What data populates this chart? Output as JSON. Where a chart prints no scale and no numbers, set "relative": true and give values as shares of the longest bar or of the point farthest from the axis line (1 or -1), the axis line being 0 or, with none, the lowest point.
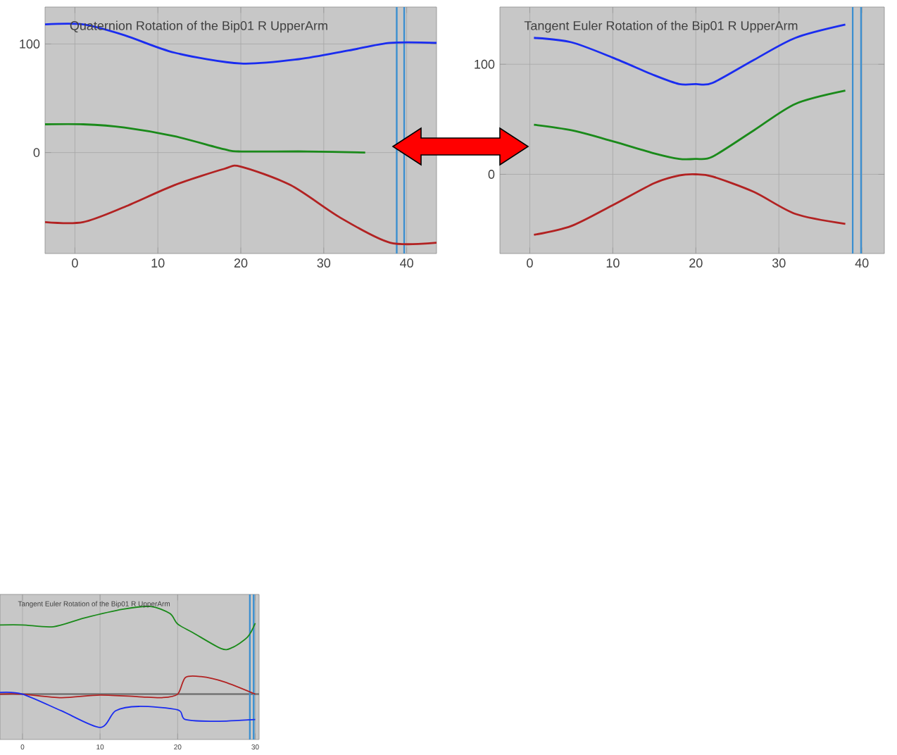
{
  "chart_data": [
    {
      "type": "line",
      "title": "Quaternion Rotation of the Bip01 R UpperArm",
      "xlim": [
        -3.6,
        43.6
      ],
      "ylim": [
        -93,
        134
      ],
      "xticks": [
        0,
        10,
        20,
        30,
        40
      ],
      "yticks": [
        0,
        100
      ],
      "grid": true,
      "series": [
        {
          "color": "#1a2cf0",
          "x": [
            -3.6,
            1,
            6,
            12,
            20,
            27,
            33,
            38,
            43.6
          ],
          "values": [
            118,
            118,
            108,
            92,
            82,
            86,
            94,
            101,
            101
          ]
        },
        {
          "color": "#1a8a1a",
          "x": [
            -3.6,
            1,
            6,
            12,
            18,
            20,
            28,
            35
          ],
          "values": [
            26,
            26,
            23,
            15,
            3,
            1,
            1,
            0
          ]
        },
        {
          "color": "#b22222",
          "x": [
            -3.6,
            1,
            6,
            12,
            18,
            20,
            26,
            32,
            38,
            43.6
          ],
          "values": [
            -64,
            -64,
            -50,
            -30,
            -15,
            -13,
            -30,
            -60,
            -83,
            -83
          ]
        }
      ],
      "ref_lines": [
        {
          "axis": "x",
          "value": 38.8,
          "color": "#3b8fd0"
        },
        {
          "axis": "x",
          "value": 39.7,
          "color": "#3b8fd0"
        }
      ]
    },
    {
      "type": "line",
      "title": "Tangent Euler Rotation of the Bip01 R UpperArm",
      "xlim": [
        -3.6,
        42.7
      ],
      "ylim": [
        -72,
        152
      ],
      "xticks": [
        0,
        10,
        20,
        30,
        40
      ],
      "yticks": [
        0,
        100
      ],
      "grid": true,
      "series": [
        {
          "color": "#1a2cf0",
          "x": [
            0.5,
            5,
            10,
            15,
            18,
            20,
            22,
            27,
            32,
            38
          ],
          "values": [
            124,
            120,
            106,
            90,
            82,
            82,
            83,
            104,
            124,
            136
          ]
        },
        {
          "color": "#1a8a1a",
          "x": [
            0.5,
            5,
            10,
            15,
            18,
            20,
            22,
            27,
            32,
            38
          ],
          "values": [
            45,
            40,
            30,
            19,
            14,
            14,
            16,
            40,
            64,
            76
          ]
        },
        {
          "color": "#b22222",
          "x": [
            0.5,
            5,
            10,
            15,
            18,
            20,
            22,
            27,
            32,
            38
          ],
          "values": [
            -55,
            -47,
            -28,
            -8,
            -1,
            0,
            -2,
            -16,
            -36,
            -45
          ]
        }
      ],
      "ref_lines": [
        {
          "axis": "x",
          "value": 38.9,
          "color": "#3b8fd0"
        },
        {
          "axis": "x",
          "value": 39.9,
          "color": "#3b8fd0"
        }
      ]
    },
    {
      "type": "line",
      "title": "Tangent Euler Rotation of the Bip01 R UpperArm",
      "xlim": [
        -2.9,
        30.5
      ],
      "xticks": [
        0,
        10,
        20,
        30
      ],
      "relative": true,
      "tick_labels": "x",
      "grid": true,
      "series": [
        {
          "color": "#1a8a1a",
          "x": [
            -2.9,
            0,
            4,
            8,
            13,
            16.5,
            19,
            20,
            22,
            25.6,
            27,
            29,
            30
          ],
          "values": [
            0.79,
            0.79,
            0.77,
            0.87,
            0.97,
            1.0,
            0.92,
            0.8,
            0.7,
            0.52,
            0.53,
            0.65,
            0.81
          ]
        },
        {
          "color": "#b22222",
          "x": [
            -2.9,
            0,
            5,
            10,
            15,
            18,
            20,
            21,
            23,
            26,
            30
          ],
          "values": [
            0,
            0,
            -0.04,
            -0.01,
            -0.03,
            -0.04,
            0,
            0.19,
            0.2,
            0.14,
            0
          ]
        },
        {
          "color": "#1a2cf0",
          "x": [
            -2.9,
            0,
            5,
            10,
            12,
            15,
            20,
            21,
            25,
            30
          ],
          "values": [
            0.02,
            0,
            -0.19,
            -0.38,
            -0.19,
            -0.14,
            -0.18,
            -0.29,
            -0.31,
            -0.29
          ]
        }
      ],
      "ref_lines": [
        {
          "axis": "x",
          "value": 29.3,
          "color": "#3b8fd0"
        },
        {
          "axis": "x",
          "value": 29.8,
          "color": "#3b8fd0"
        }
      ]
    }
  ]
}
